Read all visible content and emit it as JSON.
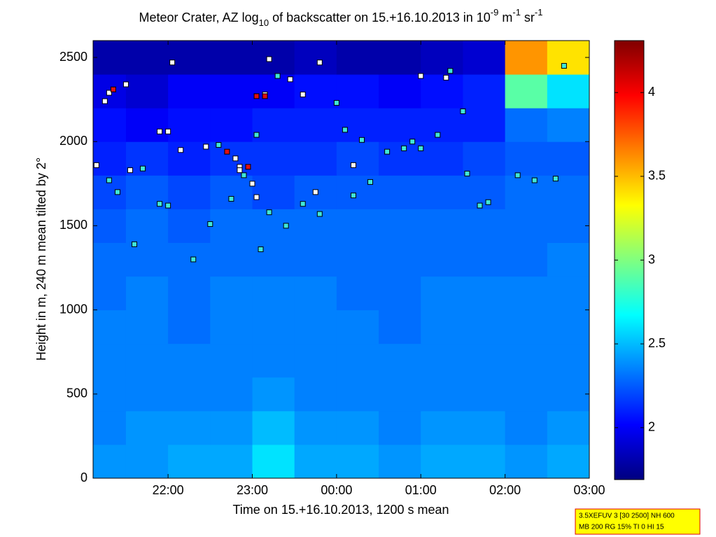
{
  "chart_data": {
    "type": "heatmap",
    "title": [
      "Meteor Crater, AZ log",
      "10",
      " of backscatter on 15.+16.10.2013 in 10",
      "-9",
      " m",
      "-1",
      " sr",
      "-1"
    ],
    "xlabel": "Time on 15.+16.10.2013, 1200 s mean",
    "ylabel": "Height in m, 240 m mean tilted by 2°",
    "xlim": [
      21.11,
      27.0
    ],
    "xticks": [
      {
        "value": 22,
        "label": "22:00"
      },
      {
        "value": 23,
        "label": "23:00"
      },
      {
        "value": 24,
        "label": "00:00"
      },
      {
        "value": 25,
        "label": "01:00"
      },
      {
        "value": 26,
        "label": "02:00"
      },
      {
        "value": 27,
        "label": "03:00"
      }
    ],
    "ylim": [
      0,
      2600
    ],
    "yticks": [
      0,
      500,
      1000,
      1500,
      2000,
      2500
    ],
    "clim": [
      1.69,
      4.31
    ],
    "cticks": [
      2,
      2.5,
      3,
      3.5,
      4
    ],
    "xbins": [
      21.11,
      21.5,
      22,
      22.5,
      23,
      23.5,
      24,
      24.5,
      25,
      25.5,
      26,
      26.5,
      27
    ],
    "ybins": [
      0,
      200,
      400,
      600,
      800,
      1000,
      1200,
      1400,
      1600,
      1800,
      2000,
      2200,
      2400,
      2600
    ],
    "z": [
      [
        2.4,
        2.4,
        2.45,
        2.45,
        2.6,
        2.45,
        2.45,
        2.4,
        2.45,
        2.45,
        2.4,
        2.45
      ],
      [
        2.35,
        2.4,
        2.4,
        2.4,
        2.5,
        2.4,
        2.4,
        2.35,
        2.4,
        2.4,
        2.35,
        2.4
      ],
      [
        2.35,
        2.35,
        2.35,
        2.35,
        2.4,
        2.35,
        2.35,
        2.35,
        2.35,
        2.35,
        2.35,
        2.35
      ],
      [
        2.35,
        2.35,
        2.35,
        2.35,
        2.35,
        2.35,
        2.35,
        2.35,
        2.35,
        2.35,
        2.35,
        2.35
      ],
      [
        2.35,
        2.35,
        2.3,
        2.35,
        2.35,
        2.35,
        2.35,
        2.3,
        2.35,
        2.35,
        2.35,
        2.35
      ],
      [
        2.3,
        2.35,
        2.3,
        2.35,
        2.35,
        2.35,
        2.3,
        2.3,
        2.35,
        2.35,
        2.35,
        2.35
      ],
      [
        2.3,
        2.3,
        2.3,
        2.3,
        2.3,
        2.3,
        2.3,
        2.3,
        2.3,
        2.3,
        2.3,
        2.35
      ],
      [
        2.25,
        2.3,
        2.25,
        2.3,
        2.3,
        2.3,
        2.3,
        2.3,
        2.3,
        2.3,
        2.3,
        2.3
      ],
      [
        2.2,
        2.25,
        2.2,
        2.25,
        2.2,
        2.25,
        2.25,
        2.25,
        2.25,
        2.25,
        2.3,
        2.3
      ],
      [
        2.1,
        2.15,
        2.1,
        2.15,
        2.15,
        2.15,
        2.2,
        2.15,
        2.15,
        2.2,
        2.25,
        2.25
      ],
      [
        2.05,
        2.0,
        2.05,
        2.05,
        2.1,
        2.1,
        2.1,
        2.1,
        2.1,
        2.1,
        2.3,
        2.35
      ],
      [
        1.95,
        1.9,
        2.0,
        2.0,
        2.0,
        2.05,
        2.05,
        2.0,
        2.05,
        2.1,
        2.9,
        2.6
      ],
      [
        1.8,
        1.8,
        1.8,
        1.8,
        1.8,
        1.85,
        1.8,
        1.8,
        1.85,
        1.9,
        3.6,
        3.4
      ]
    ],
    "series": [
      {
        "color": "#ffffff",
        "x": [
          21.25,
          21.3,
          21.5,
          21.55,
          21.9,
          22.0,
          22.05,
          22.15,
          22.45,
          22.8,
          22.85,
          23.15,
          23.0,
          23.05,
          23.2,
          23.45,
          23.6,
          23.75,
          23.8,
          24.2,
          25.3,
          25.0,
          21.15,
          22.85
        ],
        "y": [
          2240,
          2290,
          2340,
          1830,
          2060,
          2060,
          2470,
          1950,
          1970,
          1900,
          1850,
          2280,
          1750,
          1670,
          2490,
          2370,
          2280,
          1700,
          2470,
          1860,
          2380,
          2390,
          1860,
          1830
        ]
      },
      {
        "color": "#40e8d8",
        "x": [
          21.3,
          21.4,
          21.6,
          21.7,
          21.9,
          22.0,
          22.3,
          22.5,
          22.6,
          22.75,
          23.1,
          23.2,
          23.4,
          23.6,
          23.8,
          24.0,
          24.1,
          24.2,
          24.4,
          24.6,
          24.9,
          25.0,
          25.2,
          25.5,
          25.55,
          25.7,
          25.8,
          26.15,
          26.35,
          26.6,
          26.7,
          24.3,
          24.8,
          25.35,
          23.05,
          22.9,
          23.3
        ],
        "y": [
          1770,
          1700,
          1390,
          1840,
          1630,
          1620,
          1300,
          1510,
          1980,
          1660,
          1360,
          1580,
          1500,
          1630,
          1570,
          2230,
          2070,
          1680,
          1760,
          1940,
          2000,
          1960,
          2040,
          2180,
          1810,
          1620,
          1640,
          1800,
          1770,
          1780,
          2450,
          2010,
          1960,
          2420,
          2040,
          1800,
          2390
        ]
      },
      {
        "color": "#e01010",
        "x": [
          21.35,
          23.05,
          22.7,
          22.95,
          23.15
        ],
        "y": [
          2310,
          2270,
          1940,
          1850,
          2270
        ]
      }
    ],
    "info": [
      "3.5XEFUV 3 [30 2500] NH 600",
      "MB 200 RG 15% TI 0 HI 15"
    ]
  }
}
